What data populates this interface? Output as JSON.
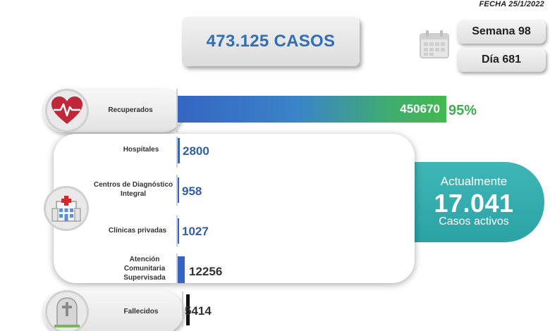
{
  "header": {
    "date": "FECHA 25/1/2022",
    "total_cases": "473.125 CASOS",
    "week": "Semana 98",
    "day": "Día 681"
  },
  "icons": {
    "calendar": "calendar-icon",
    "heart": "heart-pulse-icon",
    "hospital": "hospital-icon",
    "tombstone": "tombstone-icon"
  },
  "recovered": {
    "label": "Recuperados",
    "value": "450670",
    "percent": "95%",
    "percent_color": "#3fae4f"
  },
  "active": {
    "pre": "Actualmente",
    "number": "17.041",
    "post": "Casos activos",
    "color": "#33adae"
  },
  "hospitalization": [
    {
      "label": "Hospitales",
      "value": "2800"
    },
    {
      "label": "Centros de Diagnóstico Integral",
      "value": "958"
    },
    {
      "label": "Clínicas privadas",
      "value": "1027"
    },
    {
      "label": "Atención Comunitaria Supervisada",
      "value": "12256"
    }
  ],
  "deceased": {
    "label": "Fallecidos",
    "value": "5414"
  },
  "colors": {
    "accent_blue": "#2e6fb7",
    "bar_blue": "#3565c2",
    "bar_green": "#43b94f"
  }
}
